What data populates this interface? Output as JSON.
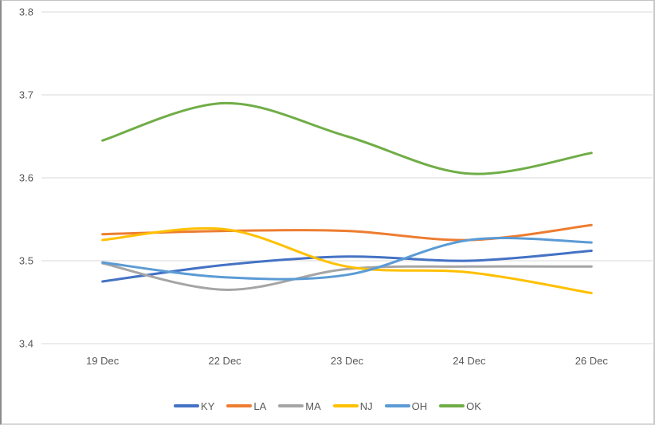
{
  "window": {
    "background": "#FFFFFF"
  },
  "chart_data": {
    "type": "line",
    "smooth": true,
    "title": "",
    "xlabel": "",
    "ylabel": "",
    "categories": [
      "19 Dec",
      "22 Dec",
      "23 Dec",
      "24 Dec",
      "26 Dec"
    ],
    "series": [
      {
        "name": "KY",
        "color": "#4472C4",
        "values": [
          3.475,
          3.495,
          3.505,
          3.5,
          3.512
        ]
      },
      {
        "name": "LA",
        "color": "#ED7D31",
        "values": [
          3.532,
          3.536,
          3.536,
          3.525,
          3.543
        ]
      },
      {
        "name": "MA",
        "color": "#A5A5A5",
        "values": [
          3.497,
          3.465,
          3.49,
          3.493,
          3.493
        ]
      },
      {
        "name": "NJ",
        "color": "#FFC000",
        "values": [
          3.525,
          3.538,
          3.493,
          3.486,
          3.461
        ]
      },
      {
        "name": "OH",
        "color": "#5B9BD5",
        "values": [
          3.498,
          3.48,
          3.483,
          3.525,
          3.522
        ]
      },
      {
        "name": "OK",
        "color": "#70AD47",
        "values": [
          3.645,
          3.69,
          3.65,
          3.605,
          3.63
        ]
      }
    ],
    "y_ticks": [
      3.8,
      3.7,
      3.6,
      3.5,
      3.4
    ],
    "y_tick_labels": [
      "3.8",
      "3.7",
      "3.6",
      "3.5",
      "3.4"
    ],
    "ylim": [
      3.4,
      3.8
    ],
    "grid": true,
    "gridline_color": "#D9D9D9",
    "axis_text_color": "#595959",
    "legend_position": "bottom",
    "legend": [
      "KY",
      "LA",
      "MA",
      "NJ",
      "OH",
      "OK"
    ]
  }
}
